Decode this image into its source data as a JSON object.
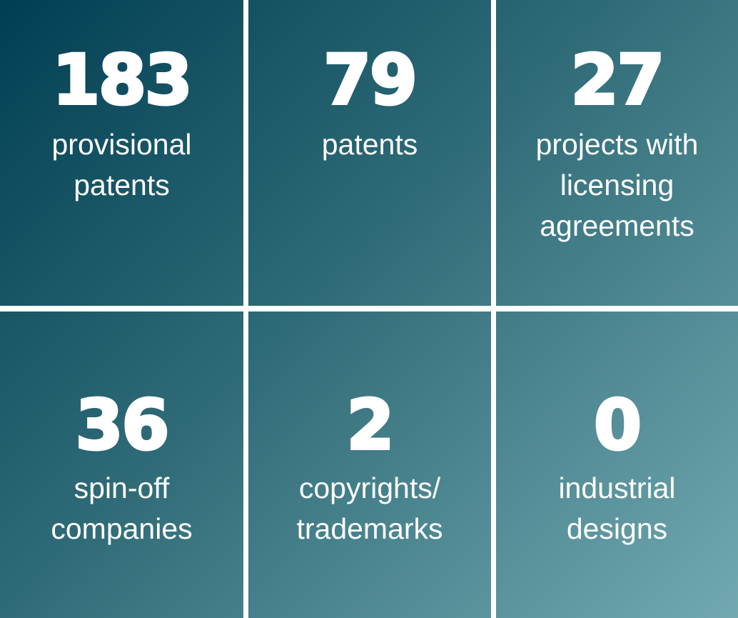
{
  "tiles": [
    {
      "number": "183",
      "label": [
        "provisional",
        "patents"
      ]
    },
    {
      "number": "79",
      "label": [
        "patents"
      ]
    },
    {
      "number": "27",
      "label": [
        "projects with",
        "licensing",
        "agreements"
      ]
    },
    {
      "number": "36",
      "label": [
        "spin-off",
        "companies"
      ]
    },
    {
      "number": "2",
      "label": [
        "copyrights/",
        "trademarks"
      ]
    },
    {
      "number": "0",
      "label": [
        "industrial",
        "designs"
      ]
    }
  ]
}
